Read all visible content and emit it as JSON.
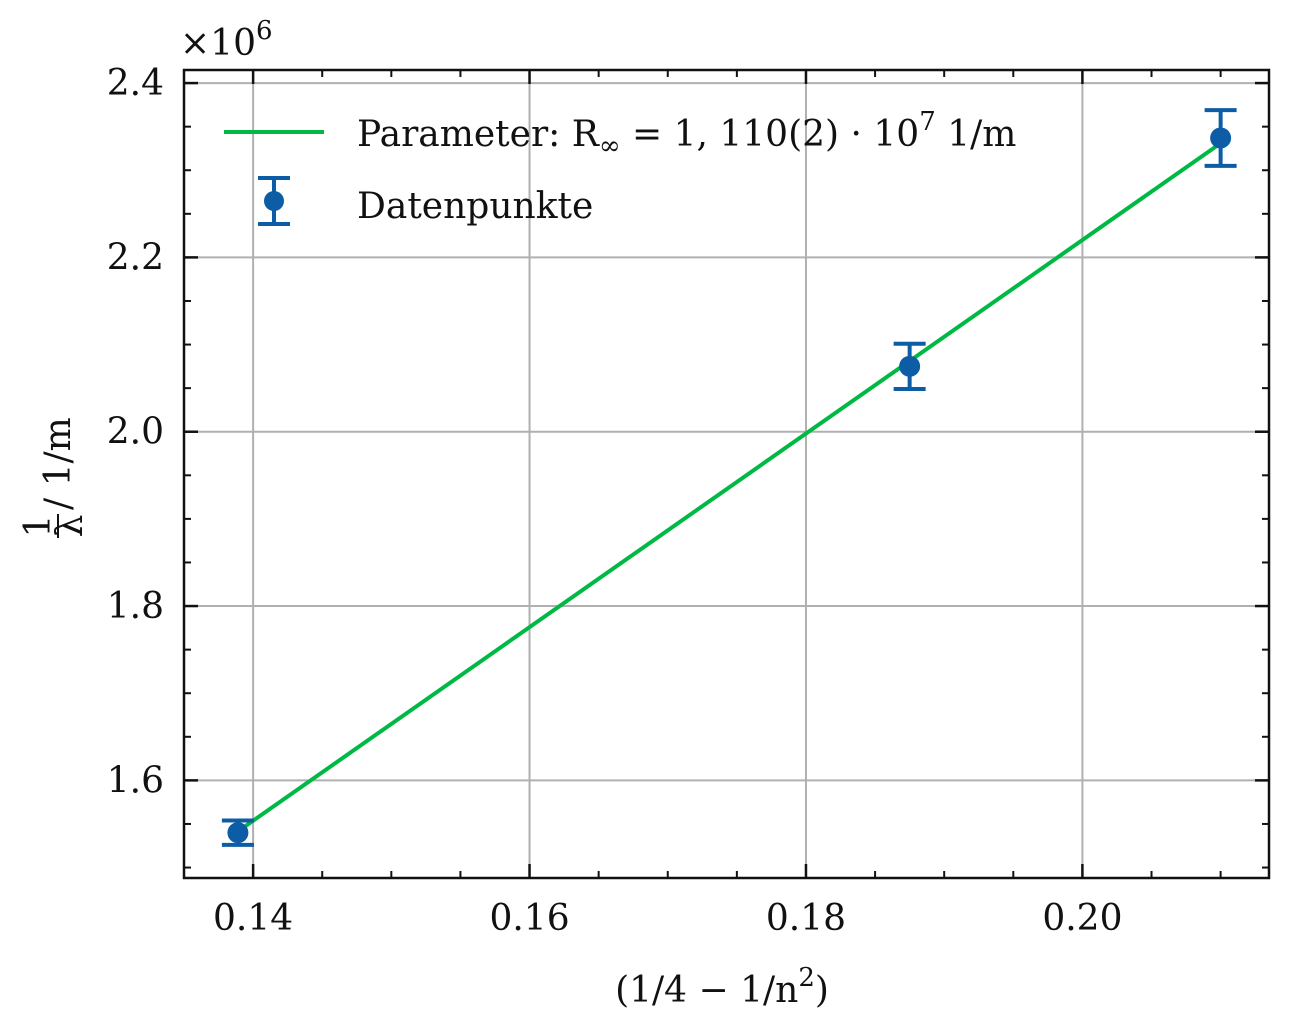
{
  "chart_data": {
    "type": "scatter",
    "xlabel_parts": [
      "(1/4 − 1/n",
      "2",
      ")"
    ],
    "ylabel_fraction": {
      "num": "1",
      "den": "λ"
    },
    "ylabel_unit": " / 1/m",
    "y_multiplier": {
      "base": "×10",
      "exp": "6"
    },
    "xlim": [
      0.135,
      0.2135
    ],
    "ylim": [
      1.488,
      2.415
    ],
    "x_ticks": [
      {
        "value": 0.14,
        "label": "0.14"
      },
      {
        "value": 0.16,
        "label": "0.16"
      },
      {
        "value": 0.18,
        "label": "0.18"
      },
      {
        "value": 0.2,
        "label": "0.20"
      }
    ],
    "y_ticks": [
      {
        "value": 1.6,
        "label": "1.6"
      },
      {
        "value": 1.8,
        "label": "1.8"
      },
      {
        "value": 2.0,
        "label": "2.0"
      },
      {
        "value": 2.2,
        "label": "2.2"
      },
      {
        "value": 2.4,
        "label": "2.4"
      }
    ],
    "grid": true,
    "legend_position": "top-left",
    "series": [
      {
        "kind": "line",
        "name_parts": [
          "Parameter:  R",
          "∞",
          " = 1, 110(2) · 10",
          "7",
          " 1/m"
        ],
        "color": "#00b945",
        "points": [
          [
            0.1389,
            1.5415
          ],
          [
            0.21,
            2.331
          ]
        ]
      },
      {
        "kind": "errorbar",
        "name": "Datenpunkte",
        "color": "#0c5da5",
        "points": [
          {
            "x": 0.1389,
            "y": 1.54,
            "err": 0.014
          },
          {
            "x": 0.1875,
            "y": 2.075,
            "err": 0.026
          },
          {
            "x": 0.21,
            "y": 2.337,
            "err": 0.032
          }
        ]
      }
    ]
  }
}
